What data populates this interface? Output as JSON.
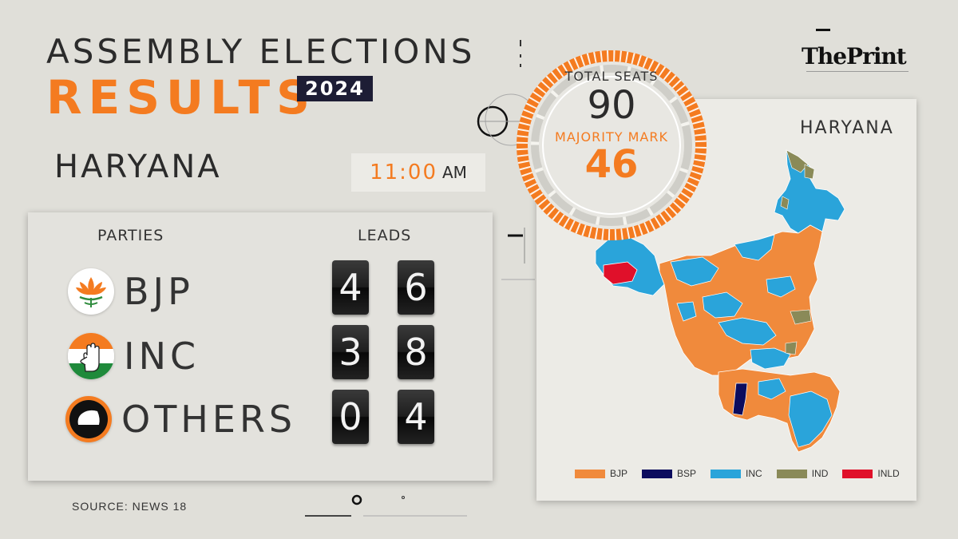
{
  "header": {
    "title_line1": "ASSEMBLY ELECTIONS",
    "title_line2": "RESULTS",
    "year": "2024",
    "state": "HARYANA",
    "time": "11:00",
    "time_suffix": "AM",
    "publisher": "ThePrint"
  },
  "seats": {
    "total_label": "TOTAL SEATS",
    "total": "90",
    "majority_label": "MAJORITY MARK",
    "majority": "46"
  },
  "table": {
    "col_parties": "PARTIES",
    "col_leads": "LEADS",
    "rows": [
      {
        "party": "BJP",
        "digits": [
          "4",
          "6"
        ],
        "color": "#f47b20"
      },
      {
        "party": "INC",
        "digits": [
          "3",
          "8"
        ],
        "color": "#1ba0e2"
      },
      {
        "party": "OTHERS",
        "digits": [
          "0",
          "4"
        ],
        "color": "#1d1d1d"
      }
    ]
  },
  "map": {
    "title": "HARYANA",
    "legend": [
      {
        "label": "BJP",
        "color": "#f08a3c"
      },
      {
        "label": "BSP",
        "color": "#0c0c5e"
      },
      {
        "label": "INC",
        "color": "#2aa4da"
      },
      {
        "label": "IND",
        "color": "#8a8a58"
      },
      {
        "label": "INLD",
        "color": "#e0102a"
      }
    ]
  },
  "source": "SOURCE: NEWS 18"
}
